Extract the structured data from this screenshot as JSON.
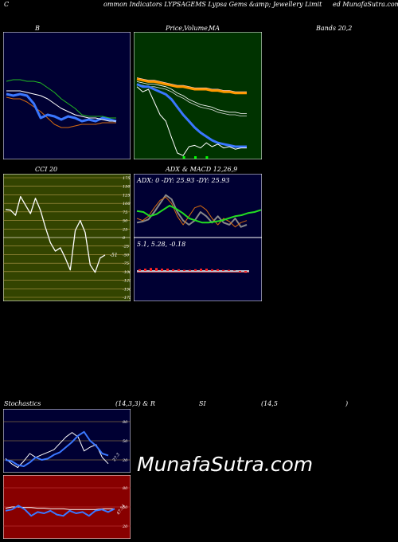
{
  "header": {
    "letter": "C",
    "left": "ommon  Indicators LYPSAGEMS Lypsa  Gems &amp; Jewellery Limit",
    "right": "ed MunafaSutra.com"
  },
  "titles": {
    "bb": "B",
    "price_left": "Price,",
    "price_mid": "Volume,",
    "price_right": "MA",
    "bands": "Bands 20,2",
    "cci": "CCI 20",
    "adx_left": "ADX",
    "adx_right": "& MACD 12,26,9",
    "stoch_left": "Stochastics",
    "stoch_mid": "(14,3,3) & R",
    "stoch_si": "SI",
    "stoch_14": "(14,5",
    "stoch_paren": ")"
  },
  "adx_text": "ADX: 0  -DY: 25.93 -DY: 25.93",
  "macd_text": "5.1,  5.28,  -0.18",
  "cci_last": "-51",
  "stoch_last": "27.3",
  "rsi_last": "47.54",
  "watermark": "MunafaSutra.com",
  "colors": {
    "bb_bg": "#000033",
    "green_bg": "#003300",
    "cci_bg": "#334400",
    "adx_bg": "#000033",
    "rsi_bg": "#880000",
    "blue": "#3a77ff",
    "grid_tan": "#b59a4a"
  },
  "chart_data": [
    {
      "type": "line",
      "name_hint": "bollinger",
      "series": [
        {
          "values": [
            69,
            70,
            70,
            69,
            69,
            68,
            65,
            62,
            58,
            55,
            52,
            48,
            47,
            47,
            47,
            46,
            46
          ]
        },
        {
          "values": [
            63,
            63,
            63,
            62,
            61,
            60,
            58,
            55,
            52,
            50,
            48,
            47,
            46,
            46,
            45,
            44,
            44
          ]
        },
        {
          "values": [
            61,
            60,
            61,
            60,
            55,
            46,
            48,
            47,
            45,
            47,
            46,
            44,
            45,
            44,
            46,
            45,
            44
          ]
        },
        {
          "values": [
            59,
            58,
            58,
            56,
            53,
            50,
            46,
            42,
            40,
            40,
            41,
            42,
            42,
            42,
            43,
            43,
            43
          ]
        }
      ]
    },
    {
      "type": "line",
      "name_hint": "price_ma",
      "series": [
        {
          "values": [
            88,
            87,
            86,
            86,
            85,
            84,
            83,
            82,
            82,
            81,
            80,
            80,
            80,
            79,
            79,
            78,
            78,
            77,
            77,
            77
          ]
        },
        {
          "values": [
            86,
            85,
            84,
            84,
            83,
            82,
            80,
            77,
            75,
            72,
            70,
            68,
            67,
            66,
            64,
            63,
            62,
            62,
            61,
            61
          ]
        },
        {
          "values": [
            84,
            82,
            82,
            80,
            78,
            76,
            72,
            66,
            60,
            55,
            50,
            46,
            43,
            40,
            38,
            37,
            36,
            35,
            35,
            35
          ]
        },
        {
          "values": [
            82,
            78,
            80,
            70,
            60,
            55,
            42,
            30,
            28,
            35,
            36,
            34,
            38,
            35,
            37,
            34,
            35,
            33,
            34,
            34
          ]
        }
      ],
      "volume": [
        0,
        0,
        0,
        0,
        0,
        0,
        0,
        0,
        1,
        0,
        1,
        0,
        1,
        0,
        0,
        0,
        0,
        0,
        0,
        0
      ]
    },
    {
      "type": "line",
      "name_hint": "cci",
      "ylim": [
        -175,
        175
      ],
      "ticks": [
        175,
        150,
        125,
        100,
        75,
        50,
        25,
        0,
        -25,
        -50,
        -75,
        -100,
        -125,
        -150,
        -175
      ],
      "values": [
        82,
        80,
        65,
        120,
        95,
        70,
        115,
        80,
        30,
        -15,
        -40,
        -30,
        -60,
        -95,
        20,
        50,
        15,
        -80,
        -102,
        -60,
        -51
      ]
    },
    {
      "type": "line",
      "name_hint": "adx",
      "series": [
        {
          "values": [
            25,
            24,
            20,
            22,
            26,
            30,
            27,
            23,
            18,
            16,
            14,
            14,
            15,
            16,
            18,
            20,
            21,
            23,
            24,
            26
          ]
        },
        {
          "values": [
            18,
            16,
            20,
            28,
            35,
            38,
            32,
            20,
            12,
            20,
            28,
            30,
            26,
            18,
            12,
            18,
            15,
            10,
            14,
            16
          ]
        },
        {
          "values": [
            14,
            15,
            17,
            24,
            32,
            40,
            36,
            24,
            16,
            12,
            16,
            24,
            20,
            14,
            20,
            14,
            12,
            18,
            10,
            12
          ]
        }
      ]
    },
    {
      "type": "bar",
      "name_hint": "macd",
      "values": [
        0.2,
        0.3,
        0.4,
        0.4,
        0.3,
        0.3,
        0.2,
        0.2,
        0.1,
        0.1,
        0.2,
        0.3,
        0.3,
        0.2,
        0.2,
        0.1,
        0.1,
        0.0,
        -0.1,
        -0.2
      ]
    },
    {
      "type": "line",
      "name_hint": "stochastics",
      "ylim": [
        0,
        100
      ],
      "ticks": [
        80,
        50,
        20
      ],
      "series": [
        {
          "values": [
            20,
            18,
            12,
            10,
            16,
            24,
            20,
            22,
            28,
            32,
            40,
            48,
            58,
            64,
            50,
            42,
            30,
            27
          ]
        },
        {
          "values": [
            22,
            14,
            8,
            18,
            30,
            24,
            28,
            32,
            36,
            46,
            56,
            63,
            56,
            34,
            40,
            44,
            24,
            14
          ]
        }
      ]
    },
    {
      "type": "line",
      "name_hint": "rsi",
      "ylim": [
        0,
        100
      ],
      "ticks": [
        80,
        50,
        20
      ],
      "series": [
        {
          "values": [
            48,
            50,
            50,
            49,
            49,
            48,
            48,
            47,
            47,
            47,
            46,
            46,
            46,
            46,
            46,
            47,
            47,
            47
          ]
        },
        {
          "values": [
            44,
            46,
            52,
            46,
            36,
            42,
            40,
            44,
            38,
            36,
            44,
            40,
            42,
            36,
            44,
            46,
            42,
            47
          ]
        }
      ]
    }
  ]
}
